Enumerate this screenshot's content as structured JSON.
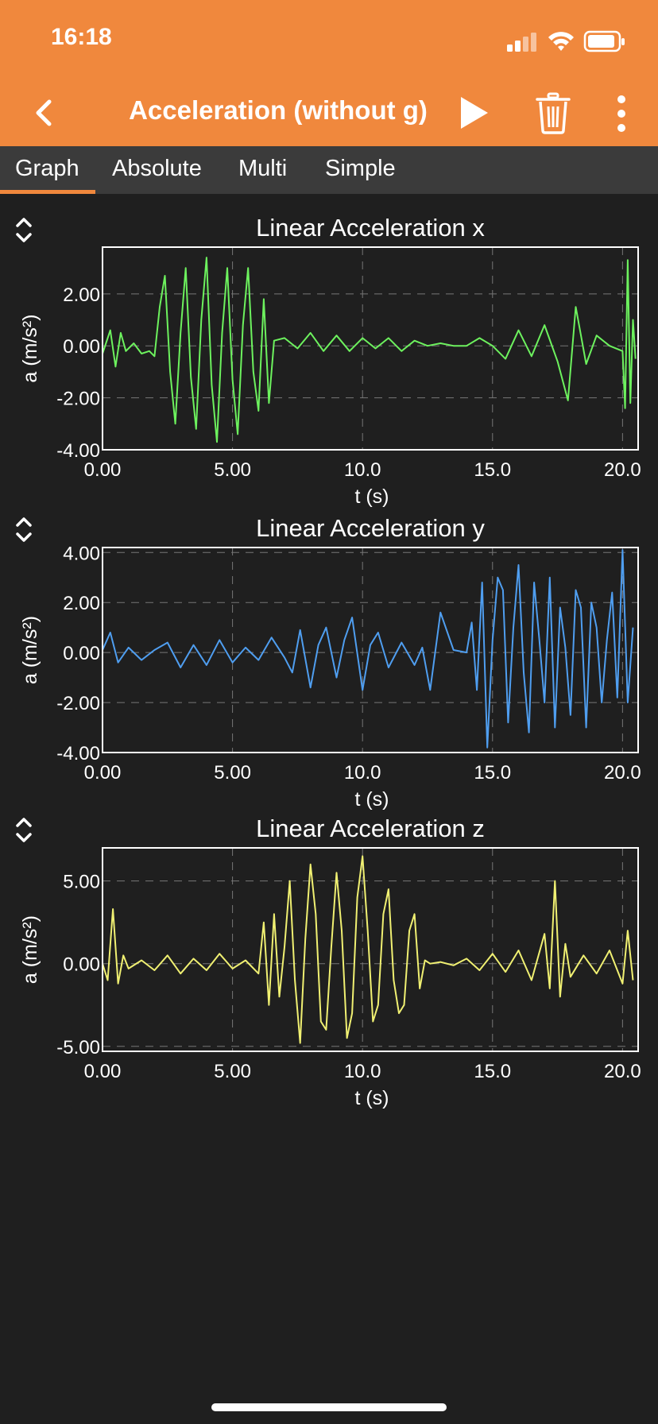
{
  "status_bar": {
    "time": "16:18"
  },
  "header": {
    "title": "Acceleration (without g)"
  },
  "tabs": [
    {
      "label": "Graph",
      "active": true
    },
    {
      "label": "Absolute",
      "active": false
    },
    {
      "label": "Multi",
      "active": false
    },
    {
      "label": "Simple",
      "active": false
    }
  ],
  "colors": {
    "accent": "#f0883d",
    "x_series": "#6df25e",
    "y_series": "#4f9ef0",
    "z_series": "#f0f072"
  },
  "chart_data": [
    {
      "type": "line",
      "title": "Linear Acceleration x",
      "xlabel": "t (s)",
      "ylabel": "a (m/s²)",
      "xlim": [
        0,
        20.6
      ],
      "ylim": [
        -4,
        3.8
      ],
      "x_ticks": [
        "0.00",
        "5.00",
        "10.0",
        "15.0",
        "20.0"
      ],
      "y_ticks": [
        "2.00",
        "0.00",
        "-2.00",
        "-4.00"
      ],
      "grid": true,
      "color": "#6df25e",
      "x": [
        0,
        0.3,
        0.5,
        0.7,
        0.9,
        1.2,
        1.5,
        1.8,
        2.0,
        2.2,
        2.4,
        2.6,
        2.8,
        3.0,
        3.2,
        3.4,
        3.6,
        3.8,
        4.0,
        4.2,
        4.4,
        4.6,
        4.8,
        5.0,
        5.2,
        5.4,
        5.6,
        5.8,
        6.0,
        6.2,
        6.4,
        6.6,
        7.0,
        7.5,
        8.0,
        8.5,
        9.0,
        9.5,
        10.0,
        10.5,
        11.0,
        11.5,
        12.0,
        12.5,
        13.0,
        13.5,
        14.0,
        14.5,
        15.0,
        15.5,
        16.0,
        16.5,
        17.0,
        17.5,
        17.9,
        18.2,
        18.6,
        19.0,
        19.5,
        20.0,
        20.1,
        20.2,
        20.3,
        20.4,
        20.5
      ],
      "values": [
        -0.3,
        0.6,
        -0.8,
        0.5,
        -0.2,
        0.1,
        -0.3,
        -0.2,
        -0.4,
        1.5,
        2.7,
        -1.0,
        -3.0,
        0.5,
        3.0,
        -1.2,
        -3.2,
        1.0,
        3.4,
        -1.5,
        -3.7,
        0.5,
        3.0,
        -1.3,
        -3.4,
        0.8,
        3.0,
        -1.0,
        -2.5,
        1.8,
        -2.2,
        0.2,
        0.3,
        -0.1,
        0.5,
        -0.2,
        0.4,
        -0.2,
        0.3,
        -0.1,
        0.3,
        -0.2,
        0.2,
        0.0,
        0.1,
        0.0,
        0.0,
        0.3,
        0.0,
        -0.5,
        0.6,
        -0.4,
        0.8,
        -0.6,
        -2.1,
        1.5,
        -0.7,
        0.4,
        0.0,
        -0.2,
        -2.4,
        3.3,
        -2.2,
        1.0,
        -0.5
      ]
    },
    {
      "type": "line",
      "title": "Linear Acceleration y",
      "xlabel": "t (s)",
      "ylabel": "a (m/s²)",
      "xlim": [
        0,
        20.6
      ],
      "ylim": [
        -4,
        4.2
      ],
      "x_ticks": [
        "0.00",
        "5.00",
        "10.0",
        "15.0",
        "20.0"
      ],
      "y_ticks": [
        "4.00",
        "2.00",
        "0.00",
        "-2.00",
        "-4.00"
      ],
      "grid": true,
      "color": "#4f9ef0",
      "x": [
        0,
        0.3,
        0.6,
        1.0,
        1.5,
        2.0,
        2.5,
        3.0,
        3.5,
        4.0,
        4.5,
        5.0,
        5.5,
        6.0,
        6.5,
        7.0,
        7.3,
        7.6,
        8.0,
        8.3,
        8.6,
        9.0,
        9.3,
        9.6,
        10.0,
        10.3,
        10.6,
        11.0,
        11.5,
        12.0,
        12.3,
        12.6,
        13.0,
        13.5,
        14.0,
        14.2,
        14.4,
        14.6,
        14.8,
        15.0,
        15.2,
        15.4,
        15.6,
        15.8,
        16.0,
        16.2,
        16.4,
        16.6,
        16.8,
        17.0,
        17.2,
        17.4,
        17.6,
        17.8,
        18.0,
        18.2,
        18.4,
        18.6,
        18.8,
        19.0,
        19.2,
        19.4,
        19.6,
        19.8,
        20.0,
        20.2,
        20.4
      ],
      "values": [
        0.1,
        0.8,
        -0.4,
        0.2,
        -0.3,
        0.1,
        0.4,
        -0.6,
        0.3,
        -0.5,
        0.5,
        -0.4,
        0.2,
        -0.3,
        0.6,
        -0.2,
        -0.8,
        0.9,
        -1.4,
        0.3,
        1.0,
        -1.0,
        0.5,
        1.4,
        -1.5,
        0.3,
        0.8,
        -0.6,
        0.4,
        -0.5,
        0.2,
        -1.5,
        1.6,
        0.1,
        0.0,
        1.2,
        -1.5,
        2.8,
        -3.8,
        0.5,
        3.0,
        2.5,
        -2.8,
        1.0,
        3.5,
        -0.8,
        -3.2,
        2.8,
        0.5,
        -2.0,
        3.0,
        -3.0,
        1.8,
        0.2,
        -2.5,
        2.5,
        1.8,
        -3.0,
        2.0,
        1.0,
        -2.0,
        0.5,
        2.4,
        -1.8,
        4.1,
        -2.0,
        1.0
      ]
    },
    {
      "type": "line",
      "title": "Linear Acceleration z",
      "xlabel": "t (s)",
      "ylabel": "a (m/s²)",
      "xlim": [
        0,
        20.6
      ],
      "ylim": [
        -5.3,
        7.0
      ],
      "x_ticks": [
        "0.00",
        "5.00",
        "10.0",
        "15.0",
        "20.0"
      ],
      "y_ticks": [
        "5.00",
        "0.00",
        "-5.00"
      ],
      "grid": true,
      "color": "#f0f072",
      "x": [
        0,
        0.2,
        0.4,
        0.6,
        0.8,
        1.0,
        1.5,
        2.0,
        2.5,
        3.0,
        3.5,
        4.0,
        4.5,
        5.0,
        5.5,
        6.0,
        6.2,
        6.4,
        6.6,
        6.8,
        7.0,
        7.2,
        7.4,
        7.6,
        7.8,
        8.0,
        8.2,
        8.4,
        8.6,
        8.8,
        9.0,
        9.2,
        9.4,
        9.6,
        9.8,
        10.0,
        10.2,
        10.4,
        10.6,
        10.8,
        11.0,
        11.2,
        11.4,
        11.6,
        11.8,
        12.0,
        12.2,
        12.4,
        12.6,
        13.0,
        13.5,
        14.0,
        14.5,
        15.0,
        15.5,
        16.0,
        16.5,
        17.0,
        17.2,
        17.4,
        17.6,
        17.8,
        18.0,
        18.5,
        19.0,
        19.5,
        20.0,
        20.2,
        20.4
      ],
      "values": [
        0.0,
        -1.0,
        3.3,
        -1.2,
        0.5,
        -0.3,
        0.2,
        -0.4,
        0.5,
        -0.6,
        0.3,
        -0.4,
        0.6,
        -0.3,
        0.2,
        -0.6,
        2.5,
        -2.5,
        3.0,
        -2.0,
        1.0,
        5.0,
        -1.0,
        -4.8,
        1.5,
        6.0,
        3.0,
        -3.5,
        -4.0,
        1.0,
        5.5,
        2.0,
        -4.5,
        -3.0,
        4.0,
        6.5,
        2.0,
        -3.5,
        -2.5,
        3.0,
        4.5,
        -1.0,
        -3.0,
        -2.5,
        2.0,
        3.0,
        -1.5,
        0.2,
        0.0,
        0.1,
        -0.1,
        0.3,
        -0.4,
        0.6,
        -0.5,
        0.8,
        -1.0,
        1.8,
        -1.5,
        5.0,
        -2.0,
        1.2,
        -0.8,
        0.5,
        -0.6,
        0.8,
        -1.2,
        2.0,
        -1.0
      ]
    }
  ]
}
